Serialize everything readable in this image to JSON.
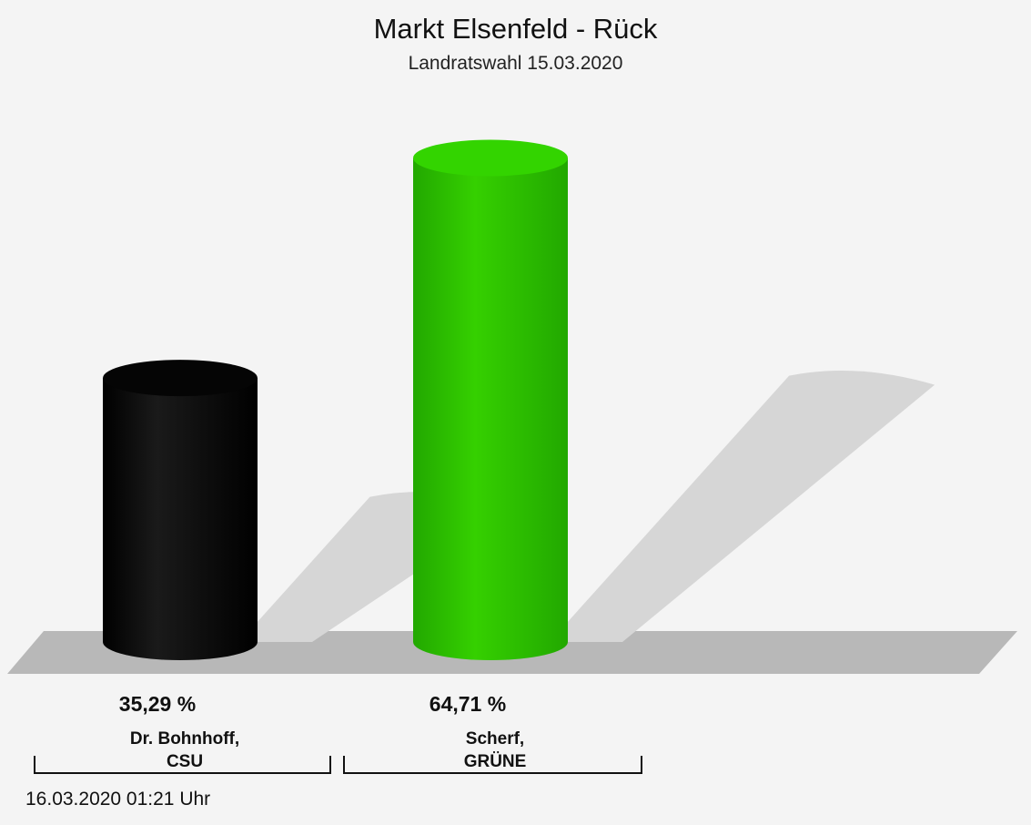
{
  "chart_data": {
    "type": "bar",
    "title": "Markt Elsenfeld - Rück",
    "subtitle": "Landratswahl 15.03.2020",
    "xlabel": "",
    "ylabel": "",
    "ylim": [
      0,
      70
    ],
    "grid": false,
    "categories": [
      [
        "Dr. Bohnhoff,",
        "CSU"
      ],
      [
        "Scherf,",
        "GRÜNE"
      ]
    ],
    "values": [
      35.29,
      64.71
    ],
    "value_labels": [
      "35,29 %",
      "64,71 %"
    ],
    "colors": [
      "#000000",
      "#2ecc00"
    ]
  },
  "footer": {
    "timestamp": "16.03.2020 01:21 Uhr"
  }
}
